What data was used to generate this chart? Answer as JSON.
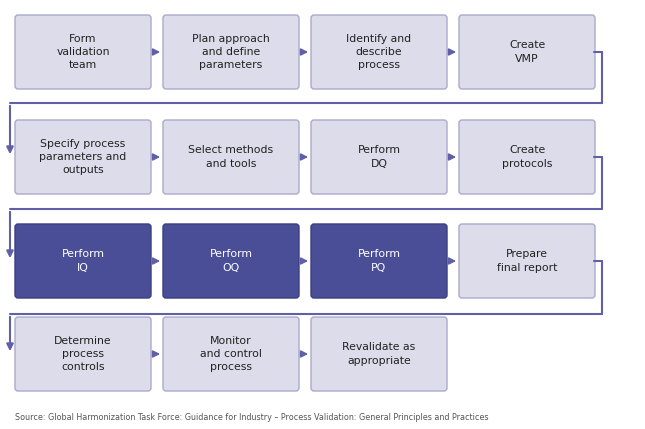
{
  "background_color": "#ffffff",
  "box_light": "#dcdcea",
  "box_light2": "#e8e8f2",
  "box_dark": "#4a4e96",
  "border_color_light": "#aaaacc",
  "border_color_dark": "#3a3e80",
  "text_light": "#222222",
  "text_dark": "#ffffff",
  "arrow_color": "#6060a8",
  "connector_color": "#6060a8",
  "source_text": "Source: Global Harmonization Task Force: Guidance for Industry – Process Validation: General Principles and Practices",
  "rows": [
    {
      "boxes": [
        {
          "label": "Form\nvalidation\nteam",
          "dark": false
        },
        {
          "label": "Plan approach\nand define\nparameters",
          "dark": false
        },
        {
          "label": "Identify and\ndescribe\nprocess",
          "dark": false
        },
        {
          "label": "Create\nVMP",
          "dark": false
        }
      ],
      "has_connector": true
    },
    {
      "boxes": [
        {
          "label": "Specify process\nparameters and\noutputs",
          "dark": false
        },
        {
          "label": "Select methods\nand tools",
          "dark": false
        },
        {
          "label": "Perform\nDQ",
          "dark": false
        },
        {
          "label": "Create\nprotocols",
          "dark": false
        }
      ],
      "has_connector": true
    },
    {
      "boxes": [
        {
          "label": "Perform\nIQ",
          "dark": true
        },
        {
          "label": "Perform\nOQ",
          "dark": true
        },
        {
          "label": "Perform\nPQ",
          "dark": true
        },
        {
          "label": "Prepare\nfinal report",
          "dark": false
        }
      ],
      "has_connector": true
    },
    {
      "boxes": [
        {
          "label": "Determine\nprocess\ncontrols",
          "dark": false
        },
        {
          "label": "Monitor\nand control\nprocess",
          "dark": false
        },
        {
          "label": "Revalidate as\nappropriate",
          "dark": false
        }
      ],
      "has_connector": false
    }
  ]
}
